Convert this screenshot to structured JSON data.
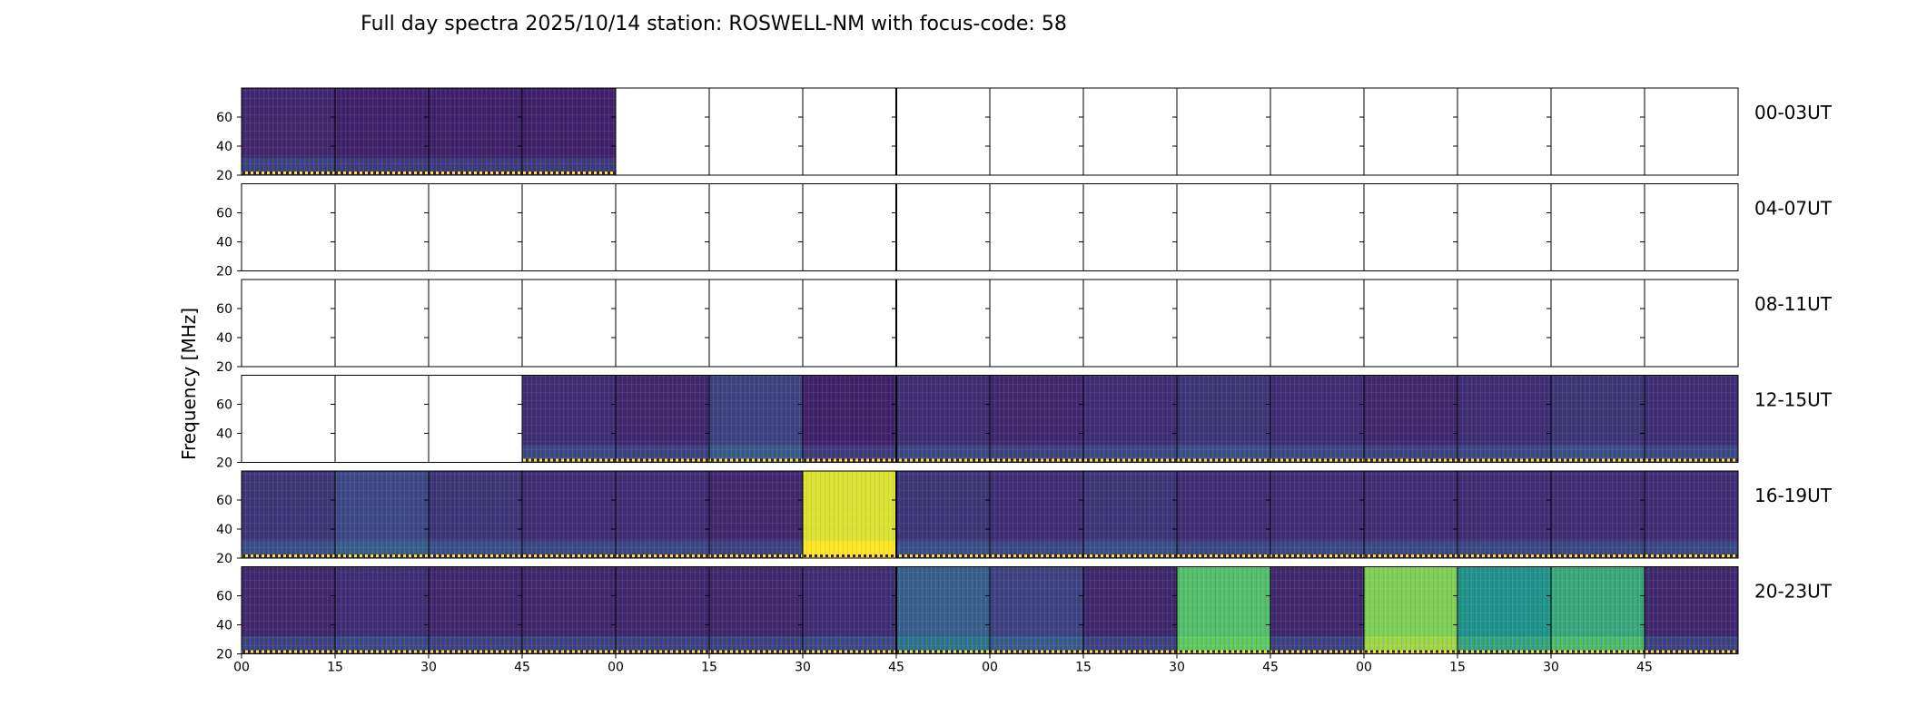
{
  "chart_data": {
    "type": "heatmap",
    "title": "Full day spectra 2025/10/14 station: ROSWELL-NM with focus-code: 58",
    "ylabel": "Frequency [MHz]",
    "xlabel": "",
    "yticks": [
      "60",
      "40",
      "20"
    ],
    "ytick_values": [
      60,
      40,
      20
    ],
    "ylim": [
      20,
      80
    ],
    "xticks": [
      "00",
      "15",
      "30",
      "45",
      "00",
      "15",
      "30",
      "45",
      "00",
      "15",
      "30",
      "45",
      "00",
      "15",
      "30",
      "45"
    ],
    "panel_minutes": 15,
    "colormap": {
      "low": "#440154",
      "mid_low": "#3b528b",
      "mid": "#21918c",
      "mid_high": "#5ec962",
      "high": "#fde725"
    },
    "rows": [
      {
        "label": "00-03UT",
        "panels": [
          0.12,
          0.1,
          0.1,
          0.1,
          null,
          null,
          null,
          null,
          null,
          null,
          null,
          null,
          null,
          null,
          null,
          null
        ]
      },
      {
        "label": "04-07UT",
        "panels": [
          null,
          null,
          null,
          null,
          null,
          null,
          null,
          null,
          null,
          null,
          null,
          null,
          null,
          null,
          null,
          null
        ]
      },
      {
        "label": "08-11UT",
        "panels": [
          null,
          null,
          null,
          null,
          null,
          null,
          null,
          null,
          null,
          null,
          null,
          null,
          null,
          null,
          null,
          null
        ]
      },
      {
        "label": "12-15UT",
        "panels": [
          null,
          null,
          null,
          0.14,
          0.12,
          0.2,
          0.1,
          0.14,
          0.12,
          0.14,
          0.16,
          0.14,
          0.12,
          0.14,
          0.16,
          0.14
        ]
      },
      {
        "label": "16-19UT",
        "panels": [
          0.16,
          0.22,
          0.16,
          0.14,
          0.14,
          0.12,
          0.95,
          0.16,
          0.14,
          0.16,
          0.14,
          0.14,
          0.14,
          0.14,
          0.14,
          0.14
        ]
      },
      {
        "label": "20-23UT",
        "panels": [
          0.12,
          0.14,
          0.12,
          0.12,
          0.12,
          0.12,
          0.14,
          0.3,
          0.2,
          0.12,
          0.7,
          0.12,
          0.8,
          0.5,
          0.6,
          0.12
        ]
      }
    ]
  }
}
